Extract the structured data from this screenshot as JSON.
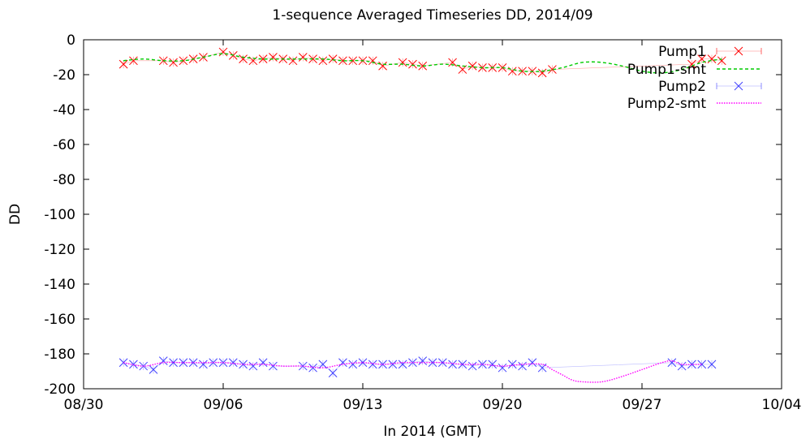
{
  "chart_data": {
    "type": "line",
    "title": "1-sequence Averaged Timeseries DD, 2014/09",
    "xlabel": "In 2014 (GMT)",
    "ylabel": "DD",
    "ylim": [
      -200,
      0
    ],
    "xlim": [
      "2014-08-30",
      "2014-10-04"
    ],
    "x_ticks": [
      "08/30",
      "09/06",
      "09/13",
      "09/20",
      "09/27",
      "10/04"
    ],
    "y_ticks": [
      "0",
      "-20",
      "-40",
      "-60",
      "-80",
      "-100",
      "-120",
      "-140",
      "-160",
      "-180",
      "-200"
    ],
    "grid": false,
    "legend_position": "top-right",
    "series": [
      {
        "name": "Pump1",
        "style": "points-with-errorbars",
        "color": "#ff0000",
        "marker": "x",
        "points": [
          [
            "2014-09-01",
            -14
          ],
          [
            "2014-09-01 12:00",
            -12
          ],
          [
            "2014-09-03",
            -12
          ],
          [
            "2014-09-03 12:00",
            -13
          ],
          [
            "2014-09-04",
            -12
          ],
          [
            "2014-09-04 12:00",
            -11
          ],
          [
            "2014-09-05",
            -10
          ],
          [
            "2014-09-06",
            -7
          ],
          [
            "2014-09-06 12:00",
            -9
          ],
          [
            "2014-09-07",
            -11
          ],
          [
            "2014-09-07 12:00",
            -12
          ],
          [
            "2014-09-08",
            -11
          ],
          [
            "2014-09-08 12:00",
            -10
          ],
          [
            "2014-09-09",
            -11
          ],
          [
            "2014-09-09 12:00",
            -12
          ],
          [
            "2014-09-10",
            -10
          ],
          [
            "2014-09-10 12:00",
            -11
          ],
          [
            "2014-09-11",
            -12
          ],
          [
            "2014-09-11 12:00",
            -11
          ],
          [
            "2014-09-12",
            -12
          ],
          [
            "2014-09-12 12:00",
            -12
          ],
          [
            "2014-09-13",
            -12
          ],
          [
            "2014-09-13 12:00",
            -12
          ],
          [
            "2014-09-14",
            -15
          ],
          [
            "2014-09-15",
            -13
          ],
          [
            "2014-09-15 12:00",
            -14
          ],
          [
            "2014-09-16",
            -15
          ],
          [
            "2014-09-17 12:00",
            -13
          ],
          [
            "2014-09-18",
            -17
          ],
          [
            "2014-09-18 12:00",
            -15
          ],
          [
            "2014-09-19",
            -16
          ],
          [
            "2014-09-19 12:00",
            -16
          ],
          [
            "2014-09-20",
            -16
          ],
          [
            "2014-09-20 12:00",
            -18
          ],
          [
            "2014-09-21",
            -18
          ],
          [
            "2014-09-21 12:00",
            -18
          ],
          [
            "2014-09-22",
            -19
          ],
          [
            "2014-09-22 12:00",
            -17
          ],
          [
            "2014-09-29 12:00",
            -14
          ],
          [
            "2014-09-30",
            -11
          ],
          [
            "2014-09-30 12:00",
            -11
          ],
          [
            "2014-10-01",
            -12
          ]
        ]
      },
      {
        "name": "Pump1-smt",
        "style": "dashed-line",
        "color": "#00cc00",
        "points": [
          [
            "2014-09-01",
            -12
          ],
          [
            "2014-09-02",
            -11
          ],
          [
            "2014-09-03",
            -12
          ],
          [
            "2014-09-04",
            -12
          ],
          [
            "2014-09-05",
            -10
          ],
          [
            "2014-09-06",
            -8
          ],
          [
            "2014-09-07",
            -10
          ],
          [
            "2014-09-08",
            -11
          ],
          [
            "2014-09-09",
            -11
          ],
          [
            "2014-09-10",
            -11
          ],
          [
            "2014-09-11",
            -11
          ],
          [
            "2014-09-12",
            -12
          ],
          [
            "2014-09-13",
            -12
          ],
          [
            "2014-09-14",
            -14
          ],
          [
            "2014-09-15",
            -14
          ],
          [
            "2014-09-16",
            -15
          ],
          [
            "2014-09-17",
            -14
          ],
          [
            "2014-09-18",
            -15
          ],
          [
            "2014-09-19",
            -16
          ],
          [
            "2014-09-20",
            -16
          ],
          [
            "2014-09-21",
            -18
          ],
          [
            "2014-09-22",
            -18
          ],
          [
            "2014-09-23",
            -16
          ],
          [
            "2014-09-24",
            -13
          ],
          [
            "2014-09-25",
            -13
          ],
          [
            "2014-09-26",
            -15
          ],
          [
            "2014-09-27",
            -18
          ],
          [
            "2014-09-28",
            -19
          ],
          [
            "2014-09-29",
            -17
          ],
          [
            "2014-09-30",
            -13
          ],
          [
            "2014-10-01",
            -11
          ]
        ]
      },
      {
        "name": "Pump2",
        "style": "points-with-errorbars",
        "color": "#4040ff",
        "marker": "x",
        "points": [
          [
            "2014-09-01",
            -185
          ],
          [
            "2014-09-01 12:00",
            -186
          ],
          [
            "2014-09-02",
            -187
          ],
          [
            "2014-09-02 12:00",
            -189
          ],
          [
            "2014-09-03",
            -184
          ],
          [
            "2014-09-03 12:00",
            -185
          ],
          [
            "2014-09-04",
            -185
          ],
          [
            "2014-09-04 12:00",
            -185
          ],
          [
            "2014-09-05",
            -186
          ],
          [
            "2014-09-05 12:00",
            -185
          ],
          [
            "2014-09-06",
            -185
          ],
          [
            "2014-09-06 12:00",
            -185
          ],
          [
            "2014-09-07",
            -186
          ],
          [
            "2014-09-07 12:00",
            -187
          ],
          [
            "2014-09-08",
            -185
          ],
          [
            "2014-09-08 12:00",
            -187
          ],
          [
            "2014-09-10",
            -187
          ],
          [
            "2014-09-10 12:00",
            -188
          ],
          [
            "2014-09-11",
            -186
          ],
          [
            "2014-09-11 12:00",
            -191
          ],
          [
            "2014-09-12",
            -185
          ],
          [
            "2014-09-12 12:00",
            -186
          ],
          [
            "2014-09-13",
            -185
          ],
          [
            "2014-09-13 12:00",
            -186
          ],
          [
            "2014-09-14",
            -186
          ],
          [
            "2014-09-14 12:00",
            -186
          ],
          [
            "2014-09-15",
            -186
          ],
          [
            "2014-09-15 12:00",
            -185
          ],
          [
            "2014-09-16",
            -184
          ],
          [
            "2014-09-16 12:00",
            -185
          ],
          [
            "2014-09-17",
            -185
          ],
          [
            "2014-09-17 12:00",
            -186
          ],
          [
            "2014-09-18",
            -186
          ],
          [
            "2014-09-18 12:00",
            -187
          ],
          [
            "2014-09-19",
            -186
          ],
          [
            "2014-09-19 12:00",
            -186
          ],
          [
            "2014-09-20",
            -188
          ],
          [
            "2014-09-20 12:00",
            -186
          ],
          [
            "2014-09-21",
            -187
          ],
          [
            "2014-09-21 12:00",
            -185
          ],
          [
            "2014-09-22",
            -188
          ],
          [
            "2014-09-28 12:00",
            -185
          ],
          [
            "2014-09-29",
            -187
          ],
          [
            "2014-09-29 12:00",
            -186
          ],
          [
            "2014-09-30",
            -186
          ],
          [
            "2014-09-30 12:00",
            -186
          ]
        ]
      },
      {
        "name": "Pump2-smt",
        "style": "dotted-line",
        "color": "#ff00ff",
        "points": [
          [
            "2014-09-01",
            -185
          ],
          [
            "2014-09-02",
            -187
          ],
          [
            "2014-09-03",
            -185
          ],
          [
            "2014-09-04",
            -185
          ],
          [
            "2014-09-05",
            -185
          ],
          [
            "2014-09-06",
            -185
          ],
          [
            "2014-09-07",
            -186
          ],
          [
            "2014-09-08",
            -186
          ],
          [
            "2014-09-09",
            -187
          ],
          [
            "2014-09-10",
            -187
          ],
          [
            "2014-09-11",
            -188
          ],
          [
            "2014-09-12",
            -186
          ],
          [
            "2014-09-13",
            -185
          ],
          [
            "2014-09-14",
            -186
          ],
          [
            "2014-09-15",
            -185
          ],
          [
            "2014-09-16",
            -185
          ],
          [
            "2014-09-17",
            -185
          ],
          [
            "2014-09-18",
            -186
          ],
          [
            "2014-09-19",
            -186
          ],
          [
            "2014-09-20",
            -187
          ],
          [
            "2014-09-21",
            -186
          ],
          [
            "2014-09-22",
            -186
          ],
          [
            "2014-09-22 12:00",
            -189
          ],
          [
            "2014-09-23",
            -192
          ],
          [
            "2014-09-23 12:00",
            -195
          ],
          [
            "2014-09-24",
            -196
          ],
          [
            "2014-09-25",
            -196
          ],
          [
            "2014-09-26",
            -193
          ],
          [
            "2014-09-27",
            -189
          ],
          [
            "2014-09-28",
            -185
          ],
          [
            "2014-09-28 12:00",
            -184
          ],
          [
            "2014-09-29",
            -186
          ],
          [
            "2014-09-30",
            -186
          ]
        ]
      }
    ]
  }
}
